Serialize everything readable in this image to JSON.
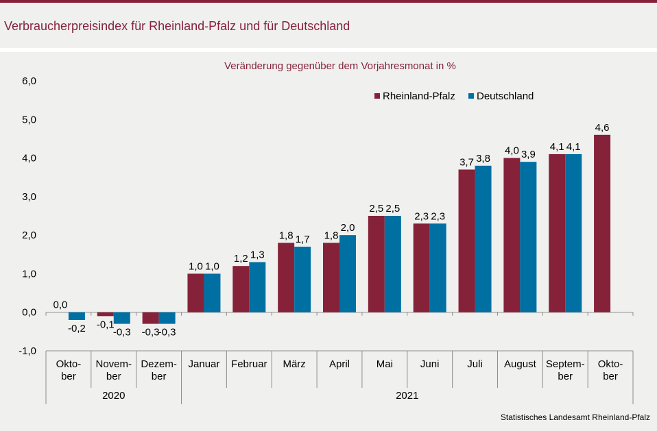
{
  "header": {
    "title": "Verbraucherpreisindex für Rheinland-Pfalz und für Deutschland"
  },
  "source": "Statistisches Landesamt Rheinland-Pfalz",
  "colors": {
    "accent": "#85223a",
    "rlp": "#85223a",
    "de": "#0070a3",
    "background": "#f0f0ef"
  },
  "chart_data": {
    "type": "bar",
    "title": "Veränderung gegenüber dem Vorjahresmonat in %",
    "xlabel": "",
    "ylabel": "",
    "ylim": [
      -1.0,
      6.0
    ],
    "yticks": [
      "6,0",
      "5,0",
      "4,0",
      "3,0",
      "2,0",
      "1,0",
      "0,0",
      "-1,0"
    ],
    "yticks_values": [
      6,
      5,
      4,
      3,
      2,
      1,
      0,
      -1
    ],
    "categories": [
      [
        "Okto-",
        "ber"
      ],
      [
        "Novem-",
        "ber"
      ],
      [
        "Dezem-",
        "ber"
      ],
      [
        "Januar"
      ],
      [
        "Februar"
      ],
      [
        "März"
      ],
      [
        "April"
      ],
      [
        "Mai"
      ],
      [
        "Juni"
      ],
      [
        "Juli"
      ],
      [
        "August"
      ],
      [
        "Septem-",
        "ber"
      ],
      [
        "Okto-",
        "ber"
      ]
    ],
    "year_groups": [
      {
        "label": "2020",
        "start": 0,
        "end": 2
      },
      {
        "label": "2021",
        "start": 3,
        "end": 12
      }
    ],
    "series": [
      {
        "name": "Rheinland-Pfalz",
        "color": "#85223a",
        "values": [
          0.0,
          -0.1,
          -0.3,
          1.0,
          1.2,
          1.8,
          1.8,
          2.5,
          2.3,
          3.7,
          4.0,
          4.1,
          4.6
        ],
        "labels": [
          "0,0",
          "-0,1",
          "-0,3",
          "1,0",
          "1,2",
          "1,8",
          "1,8",
          "2,5",
          "2,3",
          "3,7",
          "4,0",
          "4,1",
          "4,6"
        ]
      },
      {
        "name": "Deutschland",
        "color": "#0070a3",
        "values": [
          -0.2,
          -0.3,
          -0.3,
          1.0,
          1.3,
          1.7,
          2.0,
          2.5,
          2.3,
          3.8,
          3.9,
          4.1,
          null
        ],
        "labels": [
          "-0,2",
          "-0,3",
          "-0,3",
          "1,0",
          "1,3",
          "1,7",
          "2,0",
          "2,5",
          "2,3",
          "3,8",
          "3,9",
          "4,1",
          ""
        ]
      }
    ],
    "legend_position": "top-right"
  }
}
